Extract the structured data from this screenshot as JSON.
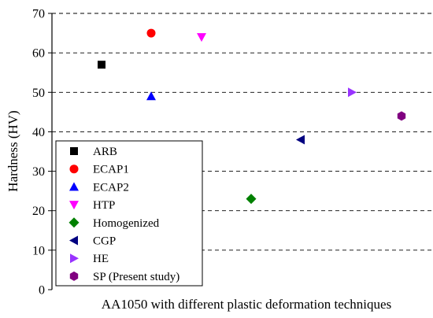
{
  "chart_data": {
    "type": "scatter",
    "title": "",
    "xlabel": "AA1050 with different plastic deformation techniques",
    "ylabel": "Hardness (HV)",
    "ylim": [
      0,
      70
    ],
    "yticks": [
      0,
      10,
      20,
      30,
      40,
      50,
      60,
      70
    ],
    "grid": "horizontal dashed",
    "legend_position": "bottom-left",
    "series": [
      {
        "name": "ARB",
        "marker": "square",
        "color": "#000000",
        "x": 1,
        "y": 57
      },
      {
        "name": "ECAP1",
        "marker": "circle",
        "color": "#ff0000",
        "x": 2,
        "y": 65
      },
      {
        "name": "ECAP2",
        "marker": "triangle-up",
        "color": "#0000ff",
        "x": 2,
        "y": 49
      },
      {
        "name": "HTP",
        "marker": "triangle-down",
        "color": "#ff00ff",
        "x": 3,
        "y": 64
      },
      {
        "name": "Homogenized",
        "marker": "diamond",
        "color": "#008000",
        "x": 4,
        "y": 23
      },
      {
        "name": "CGP",
        "marker": "triangle-left",
        "color": "#000080",
        "x": 5,
        "y": 38
      },
      {
        "name": "HE",
        "marker": "triangle-right",
        "color": "#9933ff",
        "x": 6,
        "y": 50
      },
      {
        "name": "SP (Present study)",
        "marker": "hexagon",
        "color": "#800080",
        "x": 7,
        "y": 44
      }
    ]
  }
}
